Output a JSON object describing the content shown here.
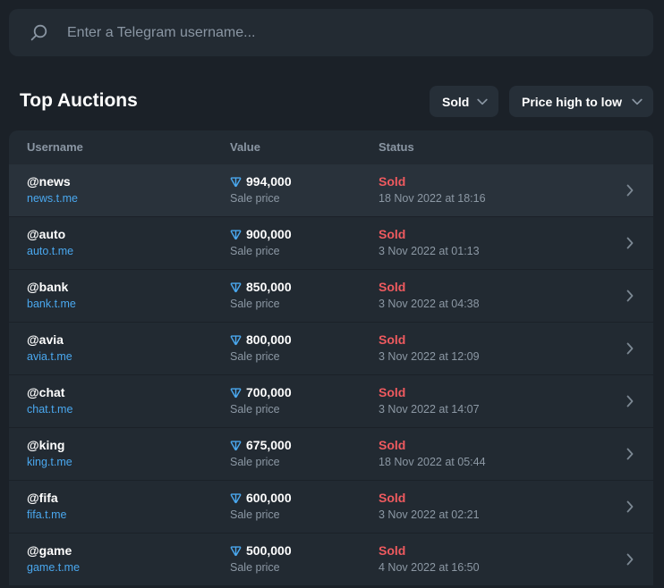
{
  "search": {
    "placeholder": "Enter a Telegram username...",
    "icon": "search-icon"
  },
  "section": {
    "title": "Top Auctions"
  },
  "filters": {
    "status": {
      "label": "Sold",
      "icon": "chevron-down-icon"
    },
    "sort": {
      "label": "Price high to low",
      "icon": "chevron-down-icon"
    }
  },
  "table": {
    "columns": [
      "Username",
      "Value",
      "Status"
    ],
    "currency_icon": "ton-icon",
    "row_icon": "chevron-right-icon",
    "rows": [
      {
        "username": "@news",
        "link": "news.t.me",
        "value": "994,000",
        "value_caption": "Sale price",
        "status": "Sold",
        "date": "18 Nov 2022 at 18:16"
      },
      {
        "username": "@auto",
        "link": "auto.t.me",
        "value": "900,000",
        "value_caption": "Sale price",
        "status": "Sold",
        "date": "3 Nov 2022 at 01:13"
      },
      {
        "username": "@bank",
        "link": "bank.t.me",
        "value": "850,000",
        "value_caption": "Sale price",
        "status": "Sold",
        "date": "3 Nov 2022 at 04:38"
      },
      {
        "username": "@avia",
        "link": "avia.t.me",
        "value": "800,000",
        "value_caption": "Sale price",
        "status": "Sold",
        "date": "3 Nov 2022 at 12:09"
      },
      {
        "username": "@chat",
        "link": "chat.t.me",
        "value": "700,000",
        "value_caption": "Sale price",
        "status": "Sold",
        "date": "3 Nov 2022 at 14:07"
      },
      {
        "username": "@king",
        "link": "king.t.me",
        "value": "675,000",
        "value_caption": "Sale price",
        "status": "Sold",
        "date": "18 Nov 2022 at 05:44"
      },
      {
        "username": "@fifa",
        "link": "fifa.t.me",
        "value": "600,000",
        "value_caption": "Sale price",
        "status": "Sold",
        "date": "3 Nov 2022 at 02:21"
      },
      {
        "username": "@game",
        "link": "game.t.me",
        "value": "500,000",
        "value_caption": "Sale price",
        "status": "Sold",
        "date": "4 Nov 2022 at 16:50"
      }
    ]
  },
  "colors": {
    "background": "#1b2128",
    "surface": "#232b33",
    "row_highlight": "#29323b",
    "text": "#ffffff",
    "muted_text": "#8a96a3",
    "link": "#4aa8ef",
    "status_sold": "#ef5a5f",
    "currency": "#4aa8ef"
  }
}
